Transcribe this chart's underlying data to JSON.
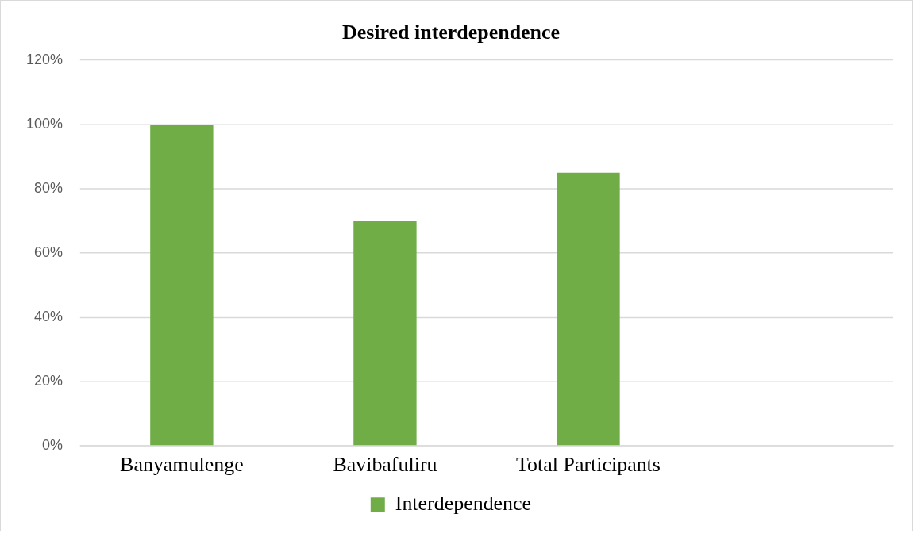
{
  "chart_data": {
    "type": "bar",
    "title": "Desired interdependence",
    "categories": [
      "Banyamulenge",
      "Bavibafuliru",
      "Total Participants",
      null
    ],
    "series": [
      {
        "name": "Interdependence",
        "color": "#70ad47",
        "values": [
          100,
          70,
          85,
          null
        ]
      }
    ],
    "ylim": [
      0,
      120
    ],
    "yticks": [
      {
        "value": 0,
        "label": "0%"
      },
      {
        "value": 20,
        "label": "20%"
      },
      {
        "value": 40,
        "label": "40%"
      },
      {
        "value": 60,
        "label": "60%"
      },
      {
        "value": 80,
        "label": "80%"
      },
      {
        "value": 100,
        "label": "100%"
      },
      {
        "value": 120,
        "label": "120%"
      }
    ],
    "grid": "y",
    "legend": "bottom"
  }
}
